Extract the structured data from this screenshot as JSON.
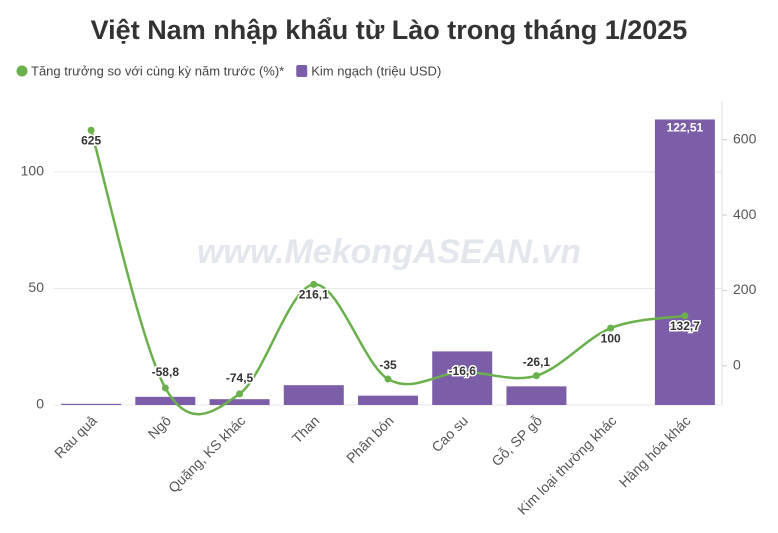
{
  "chart_data": {
    "type": "bar-line",
    "title": "Việt Nam nhập khẩu từ Lào trong tháng 1/2025",
    "watermark": "www.MekongASEAN.vn",
    "categories": [
      "Rau quả",
      "Ngô",
      "Quặng, KS khác",
      "Than",
      "Phân bón",
      "Cao su",
      "Gỗ, SP gỗ",
      "Kim loại thường khác",
      "Hàng hóa khác"
    ],
    "series": [
      {
        "name": "Tăng trưởng so với cùng kỳ năm trước (%)*",
        "color": "#6ab04c",
        "type": "line",
        "axis": "y2",
        "values": [
          625,
          -58.8,
          -74.5,
          216.1,
          -35,
          -16.6,
          -26.1,
          100,
          132.7
        ],
        "value_labels": [
          "625",
          "-58,8",
          "-74,5",
          "216,1",
          "-35",
          "-16,6",
          "-26,1",
          "100",
          "132,7"
        ]
      },
      {
        "name": "Kim ngạch (triệu USD)",
        "color": "#7b5ea7",
        "type": "bar",
        "values": [
          0.5,
          3.5,
          2.5,
          8.5,
          4,
          23,
          8,
          0,
          122.51
        ],
        "value_labels": [
          null,
          null,
          null,
          null,
          null,
          null,
          null,
          null,
          "122,51"
        ]
      }
    ],
    "ylim": [
      0,
      130
    ],
    "yticks": [
      0,
      50,
      100
    ],
    "y2lim": [
      -104,
      700
    ],
    "y2ticks": [
      0,
      200,
      400,
      600
    ],
    "grid": true
  }
}
